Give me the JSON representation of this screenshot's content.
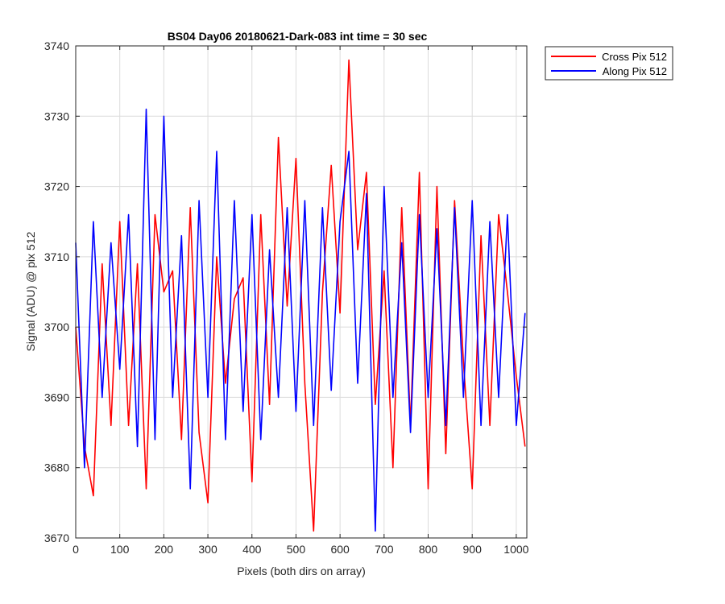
{
  "chart_data": {
    "type": "line",
    "title": "BS04 Day06 20180621-Dark-083 int time = 30 sec",
    "xlabel": "Pixels (both dirs on array)",
    "ylabel": "Signal (ADU) @ pix 512",
    "xlim": [
      0,
      1024
    ],
    "ylim": [
      3670,
      3740
    ],
    "xticks": [
      0,
      100,
      200,
      300,
      400,
      500,
      600,
      700,
      800,
      900,
      1000
    ],
    "yticks": [
      3670,
      3680,
      3690,
      3700,
      3710,
      3720,
      3730,
      3740
    ],
    "grid": true,
    "legend_position": "outside-top-right",
    "series": [
      {
        "name": "Cross Pix 512",
        "color": "#ff0000",
        "x": [
          0,
          20,
          40,
          60,
          80,
          100,
          120,
          140,
          160,
          180,
          200,
          220,
          240,
          260,
          280,
          300,
          320,
          340,
          360,
          380,
          400,
          420,
          440,
          460,
          480,
          500,
          520,
          540,
          560,
          580,
          600,
          620,
          640,
          660,
          680,
          700,
          720,
          740,
          760,
          780,
          800,
          820,
          840,
          860,
          880,
          900,
          920,
          940,
          960,
          980,
          1000,
          1020
        ],
        "y": [
          3700,
          3683,
          3676,
          3709,
          3686,
          3715,
          3686,
          3709,
          3677,
          3716,
          3705,
          3708,
          3684,
          3717,
          3685,
          3675,
          3710,
          3692,
          3704,
          3707,
          3678,
          3716,
          3689,
          3727,
          3703,
          3724,
          3692,
          3671,
          3705,
          3723,
          3702,
          3738,
          3711,
          3722,
          3689,
          3708,
          3680,
          3717,
          3686,
          3722,
          3677,
          3720,
          3682,
          3718,
          3695,
          3677,
          3713,
          3686,
          3716,
          3705,
          3693,
          3683
        ]
      },
      {
        "name": "Along Pix 512",
        "color": "#0000ff",
        "x": [
          0,
          20,
          40,
          60,
          80,
          100,
          120,
          140,
          160,
          180,
          200,
          220,
          240,
          260,
          280,
          300,
          320,
          340,
          360,
          380,
          400,
          420,
          440,
          460,
          480,
          500,
          520,
          540,
          560,
          580,
          600,
          620,
          640,
          660,
          680,
          700,
          720,
          740,
          760,
          780,
          800,
          820,
          840,
          860,
          880,
          900,
          920,
          940,
          960,
          980,
          1000,
          1020
        ],
        "y": [
          3712,
          3680,
          3715,
          3690,
          3712,
          3694,
          3716,
          3683,
          3731,
          3684,
          3730,
          3690,
          3713,
          3677,
          3718,
          3690,
          3725,
          3684,
          3718,
          3688,
          3716,
          3684,
          3711,
          3690,
          3717,
          3688,
          3718,
          3686,
          3717,
          3691,
          3715,
          3725,
          3692,
          3719,
          3671,
          3720,
          3690,
          3712,
          3685,
          3716,
          3690,
          3714,
          3686,
          3717,
          3690,
          3718,
          3686,
          3715,
          3690,
          3716,
          3686,
          3702
        ]
      }
    ]
  }
}
